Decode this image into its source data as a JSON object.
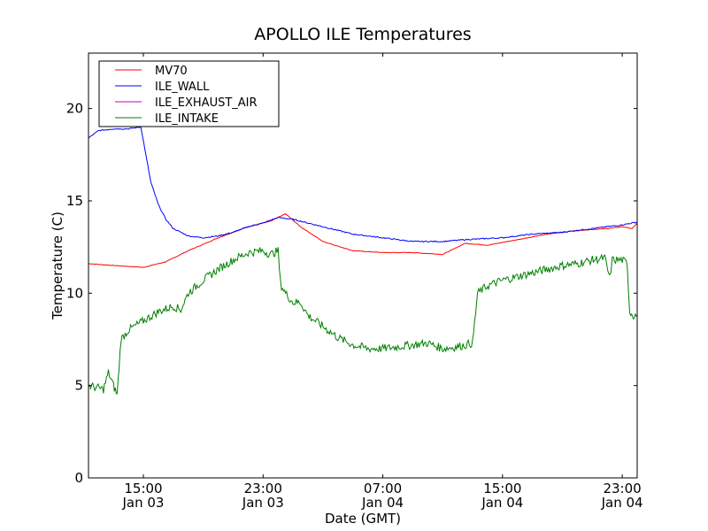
{
  "chart_data": {
    "type": "line",
    "title": "APOLLO ILE Temperatures",
    "xlabel": "Date (GMT)",
    "ylabel": "Temperature (C)",
    "ylim": [
      0,
      23
    ],
    "xlim": [
      "2013-01-03T11:20",
      "2013-01-05T00:00"
    ],
    "x_ticks": [
      {
        "t": "2013-01-03T15:00",
        "line1": "15:00",
        "line2": "Jan 03"
      },
      {
        "t": "2013-01-03T23:00",
        "line1": "23:00",
        "line2": "Jan 03"
      },
      {
        "t": "2013-01-04T07:00",
        "line1": "07:00",
        "line2": "Jan 04"
      },
      {
        "t": "2013-01-04T15:00",
        "line1": "15:00",
        "line2": "Jan 04"
      },
      {
        "t": "2013-01-04T23:00",
        "line1": "23:00",
        "line2": "Jan 04"
      }
    ],
    "y_ticks": [
      0,
      5,
      10,
      15,
      20
    ],
    "grid": false,
    "legend_position": "top-left",
    "series": [
      {
        "name": "MV70",
        "color": "#ff0000",
        "points": [
          [
            "2013-01-03T11:20",
            11.6
          ],
          [
            "2013-01-03T13:00",
            11.5
          ],
          [
            "2013-01-03T15:00",
            11.4
          ],
          [
            "2013-01-03T16:30",
            11.7
          ],
          [
            "2013-01-03T18:00",
            12.3
          ],
          [
            "2013-01-03T20:00",
            13.0
          ],
          [
            "2013-01-03T22:00",
            13.6
          ],
          [
            "2013-01-03T23:30",
            13.9
          ],
          [
            "2013-01-04T00:30",
            14.3
          ],
          [
            "2013-01-04T01:30",
            13.6
          ],
          [
            "2013-01-04T03:00",
            12.8
          ],
          [
            "2013-01-04T05:00",
            12.3
          ],
          [
            "2013-01-04T07:00",
            12.2
          ],
          [
            "2013-01-04T09:00",
            12.2
          ],
          [
            "2013-01-04T11:00",
            12.1
          ],
          [
            "2013-01-04T12:30",
            12.7
          ],
          [
            "2013-01-04T14:00",
            12.6
          ],
          [
            "2013-01-04T16:00",
            12.9
          ],
          [
            "2013-01-04T18:00",
            13.2
          ],
          [
            "2013-01-04T20:00",
            13.4
          ],
          [
            "2013-01-04T22:00",
            13.5
          ],
          [
            "2013-01-04T23:00",
            13.6
          ],
          [
            "2013-01-04T23:40",
            13.5
          ],
          [
            "2013-01-05T00:00",
            13.8
          ]
        ]
      },
      {
        "name": "ILE_WALL",
        "color": "#0000ff",
        "points": [
          [
            "2013-01-03T11:20",
            18.4
          ],
          [
            "2013-01-03T12:00",
            18.8
          ],
          [
            "2013-01-03T13:00",
            18.9
          ],
          [
            "2013-01-03T14:00",
            18.9
          ],
          [
            "2013-01-03T14:50",
            19.0
          ],
          [
            "2013-01-03T15:10",
            17.5
          ],
          [
            "2013-01-03T15:30",
            16.0
          ],
          [
            "2013-01-03T16:00",
            14.8
          ],
          [
            "2013-01-03T16:30",
            14.0
          ],
          [
            "2013-01-03T17:00",
            13.5
          ],
          [
            "2013-01-03T18:00",
            13.1
          ],
          [
            "2013-01-03T19:00",
            13.0
          ],
          [
            "2013-01-03T20:00",
            13.1
          ],
          [
            "2013-01-03T21:00",
            13.3
          ],
          [
            "2013-01-03T22:00",
            13.6
          ],
          [
            "2013-01-03T23:00",
            13.8
          ],
          [
            "2013-01-04T00:00",
            14.1
          ],
          [
            "2013-01-04T01:00",
            14.0
          ],
          [
            "2013-01-04T02:00",
            13.8
          ],
          [
            "2013-01-04T03:00",
            13.6
          ],
          [
            "2013-01-04T05:00",
            13.2
          ],
          [
            "2013-01-04T07:00",
            13.0
          ],
          [
            "2013-01-04T09:00",
            12.8
          ],
          [
            "2013-01-04T11:00",
            12.8
          ],
          [
            "2013-01-04T12:30",
            12.9
          ],
          [
            "2013-01-04T15:00",
            13.0
          ],
          [
            "2013-01-04T17:00",
            13.2
          ],
          [
            "2013-01-04T19:00",
            13.3
          ],
          [
            "2013-01-04T21:00",
            13.5
          ],
          [
            "2013-01-04T23:00",
            13.7
          ],
          [
            "2013-01-05T00:00",
            13.85
          ]
        ]
      },
      {
        "name": "ILE_EXHAUST_AIR",
        "color": "#bf00bf",
        "points": []
      },
      {
        "name": "ILE_INTAKE",
        "color": "#008000",
        "points": [
          [
            "2013-01-03T11:20",
            5.0
          ],
          [
            "2013-01-03T11:50",
            4.9
          ],
          [
            "2013-01-03T12:20",
            4.8
          ],
          [
            "2013-01-03T12:40",
            5.7
          ],
          [
            "2013-01-03T13:00",
            5.0
          ],
          [
            "2013-01-03T13:15",
            4.5
          ],
          [
            "2013-01-03T13:30",
            7.5
          ],
          [
            "2013-01-03T14:00",
            8.0
          ],
          [
            "2013-01-03T15:00",
            8.5
          ],
          [
            "2013-01-03T16:00",
            9.0
          ],
          [
            "2013-01-03T17:00",
            9.3
          ],
          [
            "2013-01-03T17:30",
            9.1
          ],
          [
            "2013-01-03T18:00",
            10.0
          ],
          [
            "2013-01-03T19:00",
            10.7
          ],
          [
            "2013-01-03T20:00",
            11.3
          ],
          [
            "2013-01-03T21:00",
            11.8
          ],
          [
            "2013-01-03T22:00",
            12.2
          ],
          [
            "2013-01-03T23:00",
            12.3
          ],
          [
            "2013-01-03T23:30",
            12.1
          ],
          [
            "2013-01-04T00:00",
            12.3
          ],
          [
            "2013-01-04T00:10",
            10.5
          ],
          [
            "2013-01-04T00:30",
            10.0
          ],
          [
            "2013-01-04T01:00",
            9.5
          ],
          [
            "2013-01-04T01:30",
            9.5
          ],
          [
            "2013-01-04T02:00",
            8.8
          ],
          [
            "2013-01-04T03:00",
            8.2
          ],
          [
            "2013-01-04T04:00",
            7.6
          ],
          [
            "2013-01-04T05:00",
            7.2
          ],
          [
            "2013-01-04T06:00",
            7.0
          ],
          [
            "2013-01-04T07:00",
            7.0
          ],
          [
            "2013-01-04T08:00",
            7.1
          ],
          [
            "2013-01-04T09:00",
            7.2
          ],
          [
            "2013-01-04T10:00",
            7.3
          ],
          [
            "2013-01-04T11:00",
            7.0
          ],
          [
            "2013-01-04T12:00",
            7.1
          ],
          [
            "2013-01-04T13:00",
            7.3
          ],
          [
            "2013-01-04T13:20",
            10.0
          ],
          [
            "2013-01-04T14:00",
            10.4
          ],
          [
            "2013-01-04T15:00",
            10.7
          ],
          [
            "2013-01-04T16:00",
            10.9
          ],
          [
            "2013-01-04T17:00",
            11.1
          ],
          [
            "2013-01-04T18:00",
            11.3
          ],
          [
            "2013-01-04T19:00",
            11.5
          ],
          [
            "2013-01-04T20:00",
            11.6
          ],
          [
            "2013-01-04T21:00",
            11.8
          ],
          [
            "2013-01-04T21:50",
            11.9
          ],
          [
            "2013-01-04T22:10",
            10.8
          ],
          [
            "2013-01-04T22:20",
            11.8
          ],
          [
            "2013-01-04T23:00",
            11.8
          ],
          [
            "2013-01-04T23:20",
            11.6
          ],
          [
            "2013-01-04T23:30",
            9.0
          ],
          [
            "2013-01-04T23:45",
            8.8
          ],
          [
            "2013-01-05T00:00",
            8.8
          ]
        ]
      }
    ]
  }
}
